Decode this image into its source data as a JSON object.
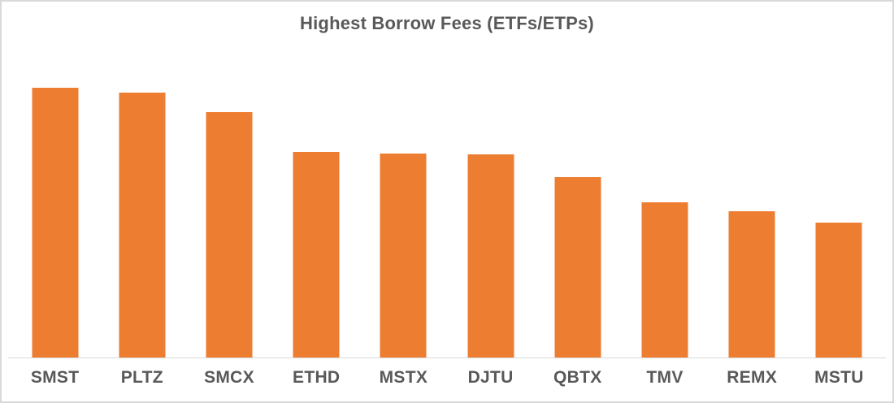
{
  "window": {
    "background": "#FFFFFF",
    "border_color": "#D9D9D9"
  },
  "chart_data": {
    "type": "bar",
    "title": "Highest Borrow Fees (ETFs/ETPs)",
    "categories": [
      "SMST",
      "PLTZ",
      "SMCX",
      "ETHD",
      "MSTX",
      "DJTU",
      "QBTX",
      "TMV",
      "REMX",
      "MSTU"
    ],
    "values": [
      100,
      98.2,
      91.0,
      76.2,
      75.6,
      75.3,
      66.9,
      57.5,
      54.2,
      50.0
    ],
    "value_note": "no y-axis or data labels visible; values are relative bar heights with tallest bar (SMST) = 100",
    "xlabel": "",
    "ylabel": "",
    "ylim": [
      0,
      100
    ],
    "grid": false,
    "legend": false,
    "bar_color": "#ED7D31",
    "title_color": "#595959",
    "label_color": "#595959",
    "axis_line_color": "#D9D9D9"
  }
}
